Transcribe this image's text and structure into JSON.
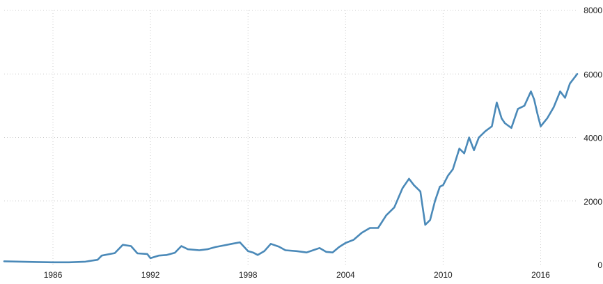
{
  "chart_data": {
    "type": "line",
    "title": "",
    "xlabel": "",
    "ylabel": "",
    "xlim": [
      1983.0,
      2018.25
    ],
    "ylim": [
      0,
      8000
    ],
    "grid": true,
    "x_ticks": [
      {
        "value": 1986,
        "label": "1986"
      },
      {
        "value": 1992,
        "label": "1992"
      },
      {
        "value": 1998,
        "label": "1998"
      },
      {
        "value": 2004,
        "label": "2004"
      },
      {
        "value": 2010,
        "label": "2010"
      },
      {
        "value": 2016,
        "label": "2016"
      }
    ],
    "y_ticks": [
      {
        "value": 0,
        "label": "0"
      },
      {
        "value": 2000,
        "label": "2000"
      },
      {
        "value": 4000,
        "label": "4000"
      },
      {
        "value": 6000,
        "label": "6000"
      },
      {
        "value": 8000,
        "label": "8000"
      }
    ],
    "line_color": "#4a89b8",
    "series": [
      {
        "x": [
          1983.0,
          1984.0,
          1985.0,
          1986.0,
          1987.0,
          1988.0,
          1988.75,
          1989.0,
          1989.4,
          1989.8,
          1990.3,
          1990.8,
          1991.2,
          1991.8,
          1992.0,
          1992.5,
          1993.0,
          1993.5,
          1993.9,
          1994.3,
          1995.0,
          1995.5,
          1996.0,
          1996.5,
          1997.0,
          1997.5,
          1998.0,
          1998.3,
          1998.6,
          1999.0,
          1999.4,
          1999.9,
          2000.3,
          2001.0,
          2001.6,
          2002.0,
          2002.4,
          2002.8,
          2003.2,
          2003.6,
          2004.0,
          2004.5,
          2005.0,
          2005.5,
          2006.0,
          2006.5,
          2007.0,
          2007.5,
          2007.9,
          2008.2,
          2008.6,
          2008.9,
          2009.2,
          2009.5,
          2009.8,
          2010.0,
          2010.3,
          2010.6,
          2011.0,
          2011.3,
          2011.6,
          2011.9,
          2012.2,
          2012.6,
          2013.0,
          2013.3,
          2013.6,
          2013.8,
          2014.2,
          2014.6,
          2015.0,
          2015.4,
          2015.6,
          2015.8,
          2016.0,
          2016.4,
          2016.8,
          2017.2,
          2017.5,
          2017.8,
          2018.25
        ],
        "y": [
          100,
          90,
          80,
          70,
          70,
          90,
          150,
          280,
          320,
          360,
          620,
          580,
          350,
          330,
          200,
          280,
          300,
          370,
          580,
          480,
          450,
          480,
          550,
          600,
          650,
          700,
          420,
          380,
          300,
          420,
          650,
          560,
          450,
          420,
          380,
          450,
          520,
          400,
          380,
          550,
          680,
          780,
          1000,
          1150,
          1150,
          1550,
          1800,
          2400,
          2700,
          2500,
          2300,
          1250,
          1400,
          2000,
          2450,
          2500,
          2800,
          3000,
          3650,
          3500,
          4000,
          3600,
          4000,
          4200,
          4350,
          5100,
          4600,
          4450,
          4300,
          4900,
          5000,
          5450,
          5200,
          4750,
          4350,
          4600,
          4950,
          5450,
          5250,
          5700,
          6000
        ]
      }
    ]
  }
}
